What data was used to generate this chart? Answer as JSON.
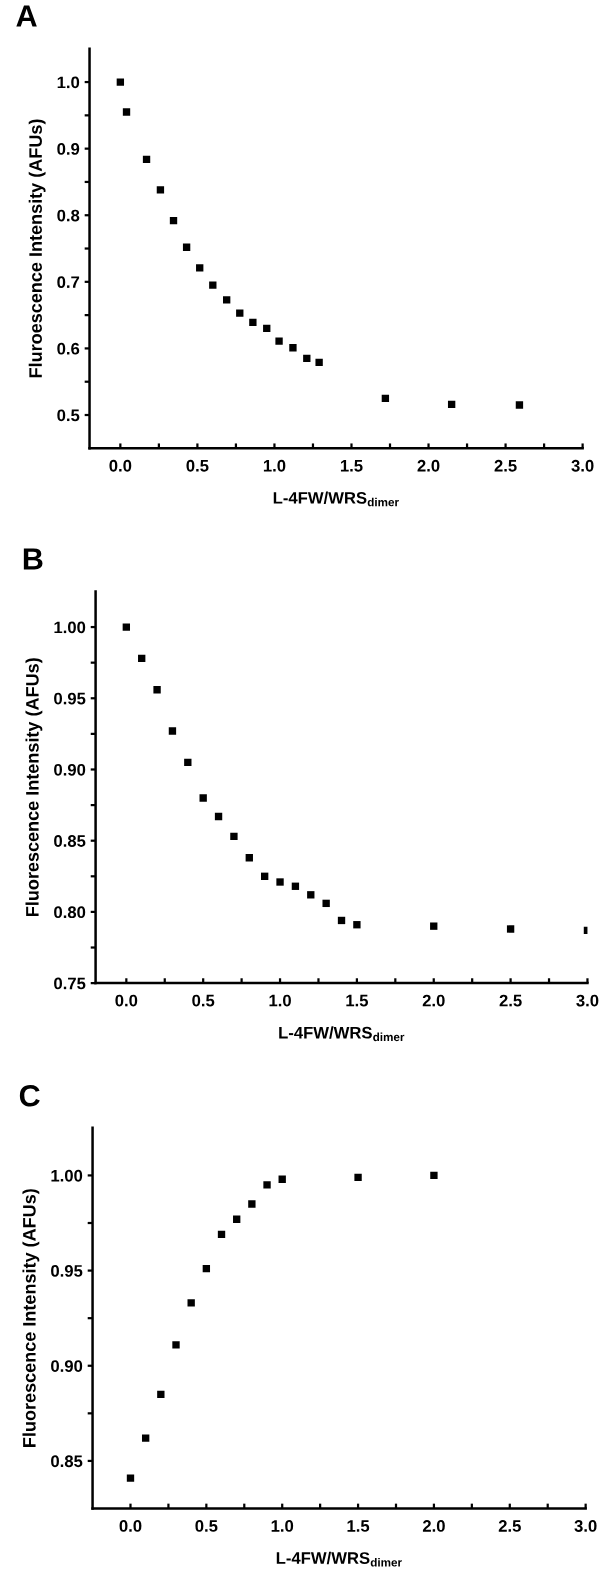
{
  "chart_data": [
    {
      "type": "scatter",
      "title": "A",
      "xlabel": "L-4FW/WRS$_{dimer}$",
      "ylabel": "Fluroescence Intensity (AFUs)",
      "marker": "square",
      "grid": false,
      "xlim": [
        -0.2,
        3.0
      ],
      "ylim": [
        0.45,
        1.05
      ],
      "xticks": [
        {
          "value": 0,
          "label": "0.0"
        },
        {
          "value": 0.25,
          "label": null
        },
        0.5,
        {
          "value": 0.75,
          "label": null
        },
        {
          "value": 1,
          "label": "1.0"
        },
        {
          "value": 1.25,
          "label": null
        },
        1.5,
        {
          "value": 1.75,
          "label": null
        },
        {
          "value": 2,
          "label": "2.0"
        },
        {
          "value": 2.25,
          "label": null
        },
        2.5,
        {
          "value": 2.75,
          "label": null
        },
        {
          "value": 3,
          "label": "3.0"
        }
      ],
      "yticks": [
        0.5,
        {
          "value": 0.55,
          "label": null
        },
        0.6,
        {
          "value": 0.65,
          "label": null
        },
        0.7,
        {
          "value": 0.75,
          "label": null
        },
        0.8,
        {
          "value": 0.85,
          "label": null
        },
        0.9,
        {
          "value": 0.95,
          "label": null
        },
        {
          "value": 1,
          "label": "1.0"
        }
      ],
      "series": [
        {
          "color": "#000000",
          "x": [
            0,
            0.04,
            0.17,
            0.26,
            0.345,
            0.43,
            0.515,
            0.6,
            0.69,
            0.775,
            0.86,
            0.95,
            1.03,
            1.12,
            1.21,
            1.29,
            1.72,
            2.15,
            2.59
          ],
          "values": [
            1.0,
            0.955,
            0.884,
            0.838,
            0.792,
            0.752,
            0.721,
            0.695,
            0.673,
            0.653,
            0.639,
            0.63,
            0.611,
            0.601,
            0.585,
            0.579,
            0.525,
            0.516,
            0.515
          ]
        }
      ]
    },
    {
      "type": "scatter",
      "title": "B",
      "xlabel": "L-4FW/WRS$_{dimer}$",
      "ylabel": "Fluorescence Intensity (AFUs)",
      "marker": "square",
      "grid": false,
      "xlim": [
        -0.2,
        3.0
      ],
      "ylim": [
        0.75,
        1.025
      ],
      "xticks": [
        {
          "value": 0,
          "label": "0.0"
        },
        {
          "value": 0.25,
          "label": null
        },
        0.5,
        {
          "value": 0.75,
          "label": null
        },
        {
          "value": 1,
          "label": "1.0"
        },
        {
          "value": 1.25,
          "label": null
        },
        1.5,
        {
          "value": 1.75,
          "label": null
        },
        {
          "value": 2,
          "label": "2.0"
        },
        {
          "value": 2.25,
          "label": null
        },
        2.5,
        {
          "value": 2.75,
          "label": null
        },
        {
          "value": 3,
          "label": "3.0"
        }
      ],
      "yticks": [
        {
          "value": 0.75,
          "label": "0.75"
        },
        {
          "value": 0.775,
          "label": null
        },
        {
          "value": 0.8,
          "label": "0.80"
        },
        {
          "value": 0.825,
          "label": null
        },
        {
          "value": 0.85,
          "label": "0.85"
        },
        {
          "value": 0.875,
          "label": null
        },
        {
          "value": 0.9,
          "label": "0.90"
        },
        {
          "value": 0.925,
          "label": null
        },
        {
          "value": 0.95,
          "label": "0.95"
        },
        {
          "value": 0.975,
          "label": null
        },
        {
          "value": 1.0,
          "label": "1.00"
        }
      ],
      "series": [
        {
          "color": "#000000",
          "x": [
            0,
            0.1,
            0.2,
            0.3,
            0.4,
            0.5,
            0.6,
            0.7,
            0.8,
            0.9,
            1.0,
            1.1,
            1.2,
            1.3,
            1.4,
            1.5,
            2.0,
            2.5,
            3.0
          ],
          "values": [
            1.0,
            0.978,
            0.956,
            0.927,
            0.905,
            0.88,
            0.867,
            0.853,
            0.838,
            0.825,
            0.821,
            0.818,
            0.812,
            0.806,
            0.794,
            0.791,
            0.79,
            0.788,
            0.787
          ]
        }
      ]
    },
    {
      "type": "scatter",
      "title": "C",
      "xlabel": "L-4FW/WRS$_{dimer}$",
      "ylabel": "Fluorescence Intensity (AFUs)",
      "marker": "square",
      "grid": false,
      "xlim": [
        -0.25,
        3.0
      ],
      "ylim": [
        0.825,
        1.025
      ],
      "xticks": [
        {
          "value": 0,
          "label": "0.0"
        },
        {
          "value": 0.25,
          "label": null
        },
        0.5,
        {
          "value": 0.75,
          "label": null
        },
        {
          "value": 1,
          "label": "1.0"
        },
        {
          "value": 1.25,
          "label": null
        },
        1.5,
        {
          "value": 1.75,
          "label": null
        },
        {
          "value": 2,
          "label": "2.0"
        },
        {
          "value": 2.25,
          "label": null
        },
        2.5,
        {
          "value": 2.75,
          "label": null
        },
        {
          "value": 3,
          "label": "3.0"
        }
      ],
      "yticks": [
        {
          "value": 0.85,
          "label": "0.85"
        },
        {
          "value": 0.875,
          "label": null
        },
        {
          "value": 0.9,
          "label": "0.90"
        },
        {
          "value": 0.925,
          "label": null
        },
        {
          "value": 0.95,
          "label": "0.95"
        },
        {
          "value": 0.975,
          "label": null
        },
        {
          "value": 1.0,
          "label": "1.00"
        }
      ],
      "series": [
        {
          "color": "#000000",
          "x": [
            0,
            0.1,
            0.2,
            0.3,
            0.4,
            0.5,
            0.6,
            0.7,
            0.8,
            0.9,
            1.0,
            1.5,
            2.0
          ],
          "values": [
            0.841,
            0.862,
            0.885,
            0.911,
            0.933,
            0.951,
            0.969,
            0.977,
            0.985,
            0.995,
            0.998,
            0.999,
            1.0
          ]
        }
      ]
    }
  ]
}
